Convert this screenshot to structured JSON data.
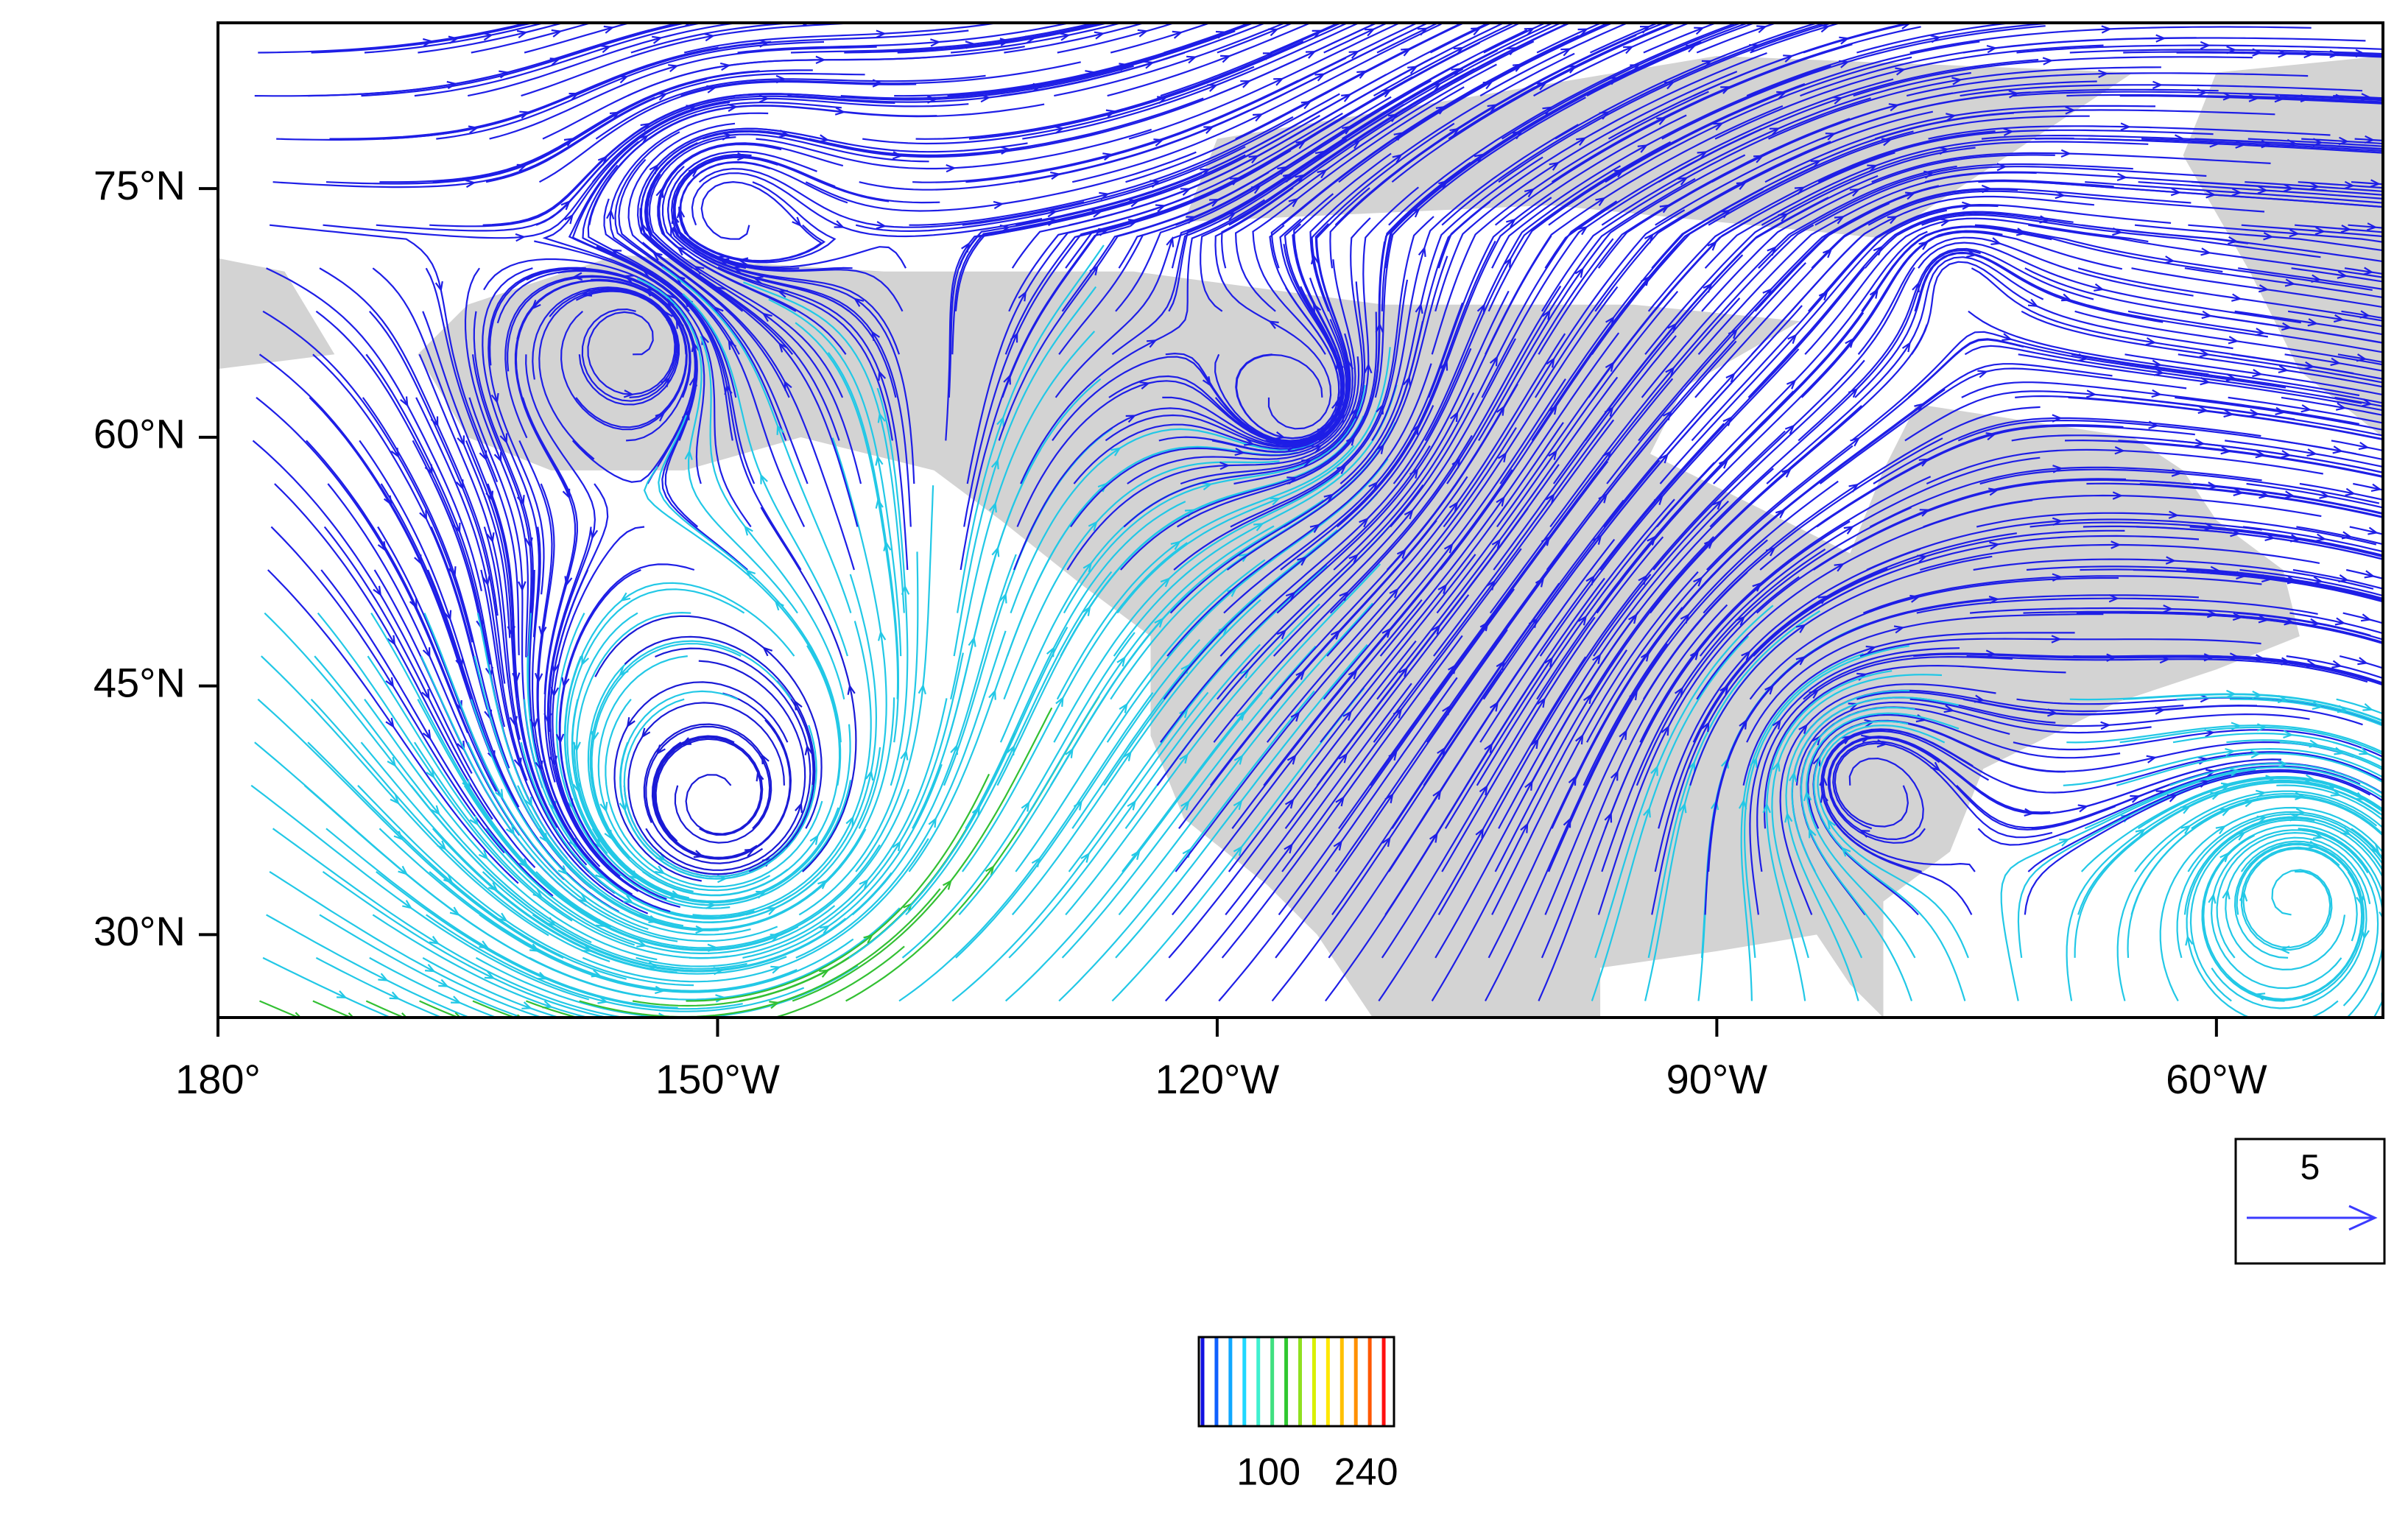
{
  "map": {
    "xlim": [
      -180,
      -50
    ],
    "ylim": [
      25,
      85
    ],
    "xticks": [
      {
        "value": -180,
        "label": "180°"
      },
      {
        "value": -150,
        "label": "150°W"
      },
      {
        "value": -120,
        "label": "120°W"
      },
      {
        "value": -90,
        "label": "90°W"
      },
      {
        "value": -60,
        "label": "60°W"
      }
    ],
    "yticks": [
      {
        "value": 30,
        "label": "30°N"
      },
      {
        "value": 45,
        "label": "45°N"
      },
      {
        "value": 60,
        "label": "60°N"
      },
      {
        "value": 75,
        "label": "75°N"
      }
    ],
    "reference_vector": {
      "label": "5"
    },
    "colorbar": {
      "range": [
        0,
        280
      ],
      "labels": [
        {
          "value": 100,
          "label": "100"
        },
        {
          "value": 240,
          "label": "240"
        }
      ]
    }
  }
}
